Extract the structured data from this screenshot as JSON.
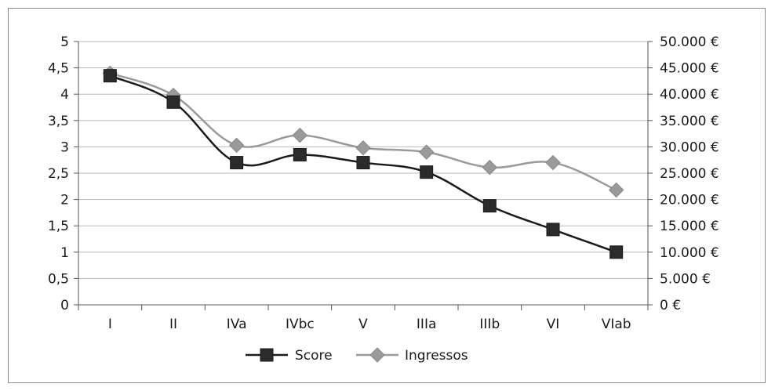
{
  "chart_data": {
    "type": "line",
    "categories": [
      "I",
      "II",
      "IVa",
      "IVbc",
      "V",
      "IIIa",
      "IIIb",
      "VI",
      "VIab"
    ],
    "series": [
      {
        "name": "Score",
        "axis": "left",
        "color": "#1a1a1a",
        "marker": "square",
        "values": [
          4.35,
          3.85,
          2.7,
          2.85,
          2.7,
          2.52,
          1.88,
          1.43,
          1.0
        ]
      },
      {
        "name": "Ingressos",
        "axis": "right",
        "color": "#9a9a9a",
        "marker": "diamond",
        "values": [
          44000,
          39800,
          30300,
          32200,
          29800,
          29000,
          26100,
          27000,
          21800
        ]
      }
    ],
    "y_left": {
      "lim": [
        0,
        5
      ],
      "ticks": [
        "0",
        "0,5",
        "1",
        "1,5",
        "2",
        "2,5",
        "3",
        "3,5",
        "4",
        "4,5",
        "5"
      ]
    },
    "y_right": {
      "lim": [
        0,
        50000
      ],
      "ticks": [
        "0 €",
        "5.000 €",
        "10.000 €",
        "15.000 €",
        "20.000 €",
        "25.000 €",
        "30.000 €",
        "35.000 €",
        "40.000 €",
        "45.000 €",
        "50.000 €"
      ]
    },
    "grid": true,
    "legend": "bottom"
  }
}
